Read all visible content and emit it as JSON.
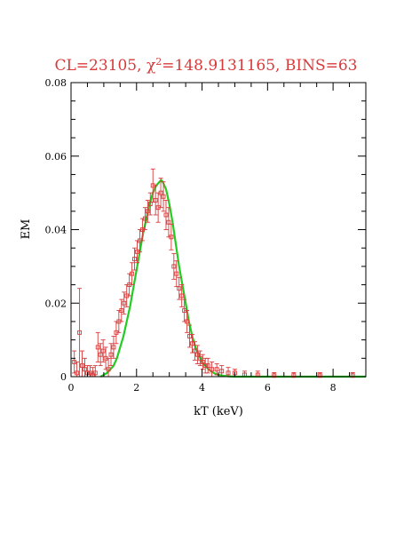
{
  "chart_data": {
    "type": "scatter",
    "title_parts": {
      "prefix": "CL=23105, ",
      "chi": "χ",
      "sup": "2",
      "suffix": "=148.9131165, BINS=63"
    },
    "xlabel": "kT (keV)",
    "ylabel": "EM",
    "xlim": [
      0,
      9
    ],
    "ylim": [
      0,
      0.08
    ],
    "x_ticks": [
      0,
      2,
      4,
      6,
      8
    ],
    "x_tick_labels": [
      "0",
      "2",
      "4",
      "6",
      "8"
    ],
    "y_ticks": [
      0,
      0.02,
      0.04,
      0.06,
      0.08
    ],
    "y_tick_labels": [
      "0",
      "0.02",
      "0.04",
      "0.06",
      "0.08"
    ],
    "grid": false,
    "legend": "none",
    "colors": {
      "data": "#d83a3a",
      "fit": "#22cc22",
      "axis": "#000000"
    },
    "series": [
      {
        "type": "errorbar",
        "x": [
          0.1,
          0.18,
          0.26,
          0.34,
          0.42,
          0.5,
          0.58,
          0.66,
          0.74,
          0.82,
          0.9,
          0.98,
          1.06,
          1.14,
          1.22,
          1.3,
          1.38,
          1.46,
          1.54,
          1.62,
          1.7,
          1.78,
          1.86,
          1.94,
          2.02,
          2.1,
          2.18,
          2.26,
          2.34,
          2.42,
          2.5,
          2.58,
          2.66,
          2.74,
          2.82,
          2.9,
          2.98,
          3.06,
          3.14,
          3.22,
          3.3,
          3.38,
          3.46,
          3.54,
          3.62,
          3.7,
          3.78,
          3.86,
          3.94,
          4.02,
          4.1,
          4.18,
          4.3,
          4.45,
          4.6,
          4.8,
          5.0,
          5.3,
          5.7,
          6.2,
          6.8,
          7.6,
          8.6
        ],
        "y": [
          0.004,
          0.001,
          0.012,
          0.003,
          0.002,
          0.001,
          0.001,
          0.0005,
          0.001,
          0.008,
          0.006,
          0.007,
          0.005,
          0.002,
          0.006,
          0.008,
          0.012,
          0.015,
          0.018,
          0.02,
          0.022,
          0.025,
          0.028,
          0.032,
          0.034,
          0.037,
          0.04,
          0.043,
          0.045,
          0.047,
          0.052,
          0.048,
          0.046,
          0.05,
          0.049,
          0.044,
          0.042,
          0.038,
          0.03,
          0.028,
          0.024,
          0.022,
          0.018,
          0.015,
          0.011,
          0.009,
          0.007,
          0.006,
          0.005,
          0.004,
          0.003,
          0.003,
          0.002,
          0.002,
          0.0015,
          0.001,
          0.001,
          0.0005,
          0.0005,
          0.0003,
          0.0003,
          0.0003,
          0.0003
        ],
        "err": [
          0.003,
          0.003,
          0.012,
          0.004,
          0.003,
          0.002,
          0.002,
          0.002,
          0.002,
          0.004,
          0.003,
          0.003,
          0.003,
          0.003,
          0.003,
          0.003,
          0.003,
          0.003,
          0.003,
          0.003,
          0.003,
          0.003,
          0.003,
          0.003,
          0.003,
          0.003,
          0.003,
          0.003,
          0.003,
          0.003,
          0.0045,
          0.004,
          0.004,
          0.004,
          0.004,
          0.004,
          0.004,
          0.0035,
          0.0035,
          0.0035,
          0.003,
          0.003,
          0.003,
          0.003,
          0.003,
          0.0025,
          0.0025,
          0.0025,
          0.002,
          0.002,
          0.002,
          0.002,
          0.002,
          0.0015,
          0.0015,
          0.0015,
          0.001,
          0.001,
          0.001,
          0.0008,
          0.0008,
          0.0008,
          0.0008
        ]
      },
      {
        "type": "line",
        "x": [
          0.9,
          1.0,
          1.1,
          1.2,
          1.3,
          1.4,
          1.5,
          1.6,
          1.7,
          1.8,
          1.9,
          2.0,
          2.1,
          2.2,
          2.3,
          2.4,
          2.5,
          2.6,
          2.7,
          2.75,
          2.8,
          2.9,
          3.0,
          3.1,
          3.2,
          3.3,
          3.4,
          3.5,
          3.6,
          3.7,
          3.8,
          3.9,
          4.0,
          4.1,
          4.2,
          4.3,
          4.4,
          4.5,
          4.6,
          4.8,
          5.0,
          5.5,
          6.0,
          7.0,
          8.0,
          9.0
        ],
        "y": [
          0.0,
          0.0005,
          0.001,
          0.002,
          0.003,
          0.005,
          0.008,
          0.011,
          0.015,
          0.019,
          0.024,
          0.029,
          0.034,
          0.039,
          0.043,
          0.047,
          0.05,
          0.052,
          0.053,
          0.0535,
          0.053,
          0.051,
          0.047,
          0.042,
          0.036,
          0.03,
          0.025,
          0.02,
          0.015,
          0.011,
          0.008,
          0.006,
          0.004,
          0.003,
          0.002,
          0.0013,
          0.0008,
          0.0005,
          0.0003,
          0.0001,
          0.0,
          0.0,
          0.0,
          0.0,
          0.0,
          0.0
        ]
      }
    ]
  }
}
